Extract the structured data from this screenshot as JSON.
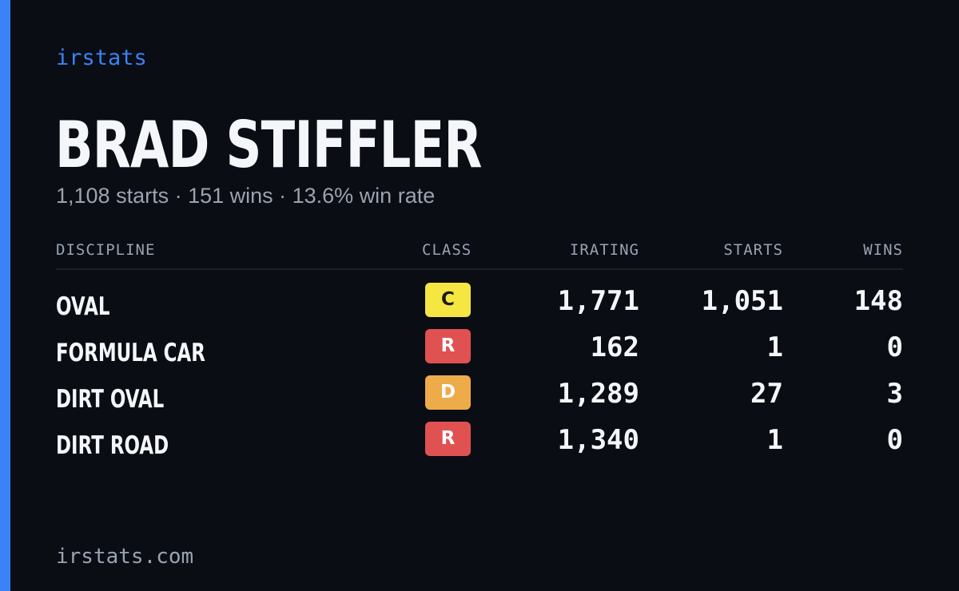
{
  "brand": "irstats",
  "driver": {
    "name": "BRAD STIFFLER",
    "summary": "1,108 starts · 151 wins · 13.6% win rate"
  },
  "table": {
    "headers": {
      "discipline": "DISCIPLINE",
      "class": "CLASS",
      "irating": "IRATING",
      "starts": "STARTS",
      "wins": "WINS"
    },
    "rows": [
      {
        "discipline": "OVAL",
        "class": "C",
        "class_color": "#f5e642",
        "class_text_color": "#1a1a1a",
        "irating": "1,771",
        "starts": "1,051",
        "wins": "148"
      },
      {
        "discipline": "FORMULA CAR",
        "class": "R",
        "class_color": "#e05252",
        "class_text_color": "#ffffff",
        "irating": "162",
        "starts": "1",
        "wins": "0"
      },
      {
        "discipline": "DIRT OVAL",
        "class": "D",
        "class_color": "#eeab4a",
        "class_text_color": "#ffffff",
        "irating": "1,289",
        "starts": "27",
        "wins": "3"
      },
      {
        "discipline": "DIRT ROAD",
        "class": "R",
        "class_color": "#e05252",
        "class_text_color": "#ffffff",
        "irating": "1,340",
        "starts": "1",
        "wins": "0"
      }
    ]
  },
  "footer": "irstats.com",
  "colors": {
    "accent": "#3b82f6",
    "background": "#0a0d14"
  }
}
